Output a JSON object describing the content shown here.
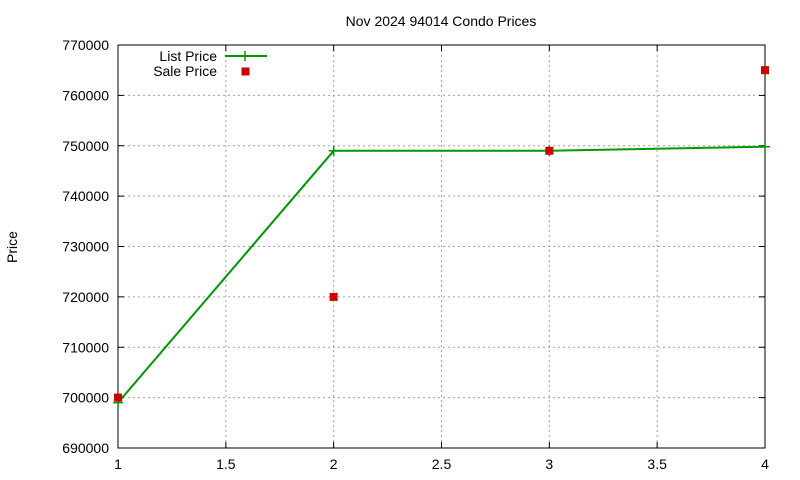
{
  "chart_data": {
    "type": "line",
    "title": "Nov 2024 94014 Condo Prices",
    "xlabel": "",
    "ylabel": "Price",
    "xlim": [
      1,
      4
    ],
    "ylim": [
      690000,
      770000
    ],
    "x_ticks": [
      1,
      1.5,
      2,
      2.5,
      3,
      3.5,
      4
    ],
    "y_ticks": [
      690000,
      700000,
      710000,
      720000,
      730000,
      740000,
      750000,
      760000,
      770000
    ],
    "x_tick_labels": [
      "1",
      "1.5",
      "2",
      "2.5",
      "3",
      "3.5",
      "4"
    ],
    "y_tick_labels": [
      "690000",
      "700000",
      "710000",
      "720000",
      "730000",
      "740000",
      "750000",
      "760000",
      "770000"
    ],
    "grid": true,
    "legend_position": "top-left",
    "series": [
      {
        "name": "List Price",
        "kind": "line",
        "color": "#009900",
        "marker": "plus",
        "points": [
          {
            "x": 1,
            "y": 699000
          },
          {
            "x": 2,
            "y": 749000
          },
          {
            "x": 3,
            "y": 749000
          },
          {
            "x": 4,
            "y": 749800
          }
        ]
      },
      {
        "name": "Sale Price",
        "kind": "scatter",
        "color": "#cc0000",
        "marker": "square",
        "points": [
          {
            "x": 1,
            "y": 700000
          },
          {
            "x": 2,
            "y": 720000
          },
          {
            "x": 3,
            "y": 749000
          },
          {
            "x": 4,
            "y": 765000
          }
        ]
      }
    ]
  }
}
